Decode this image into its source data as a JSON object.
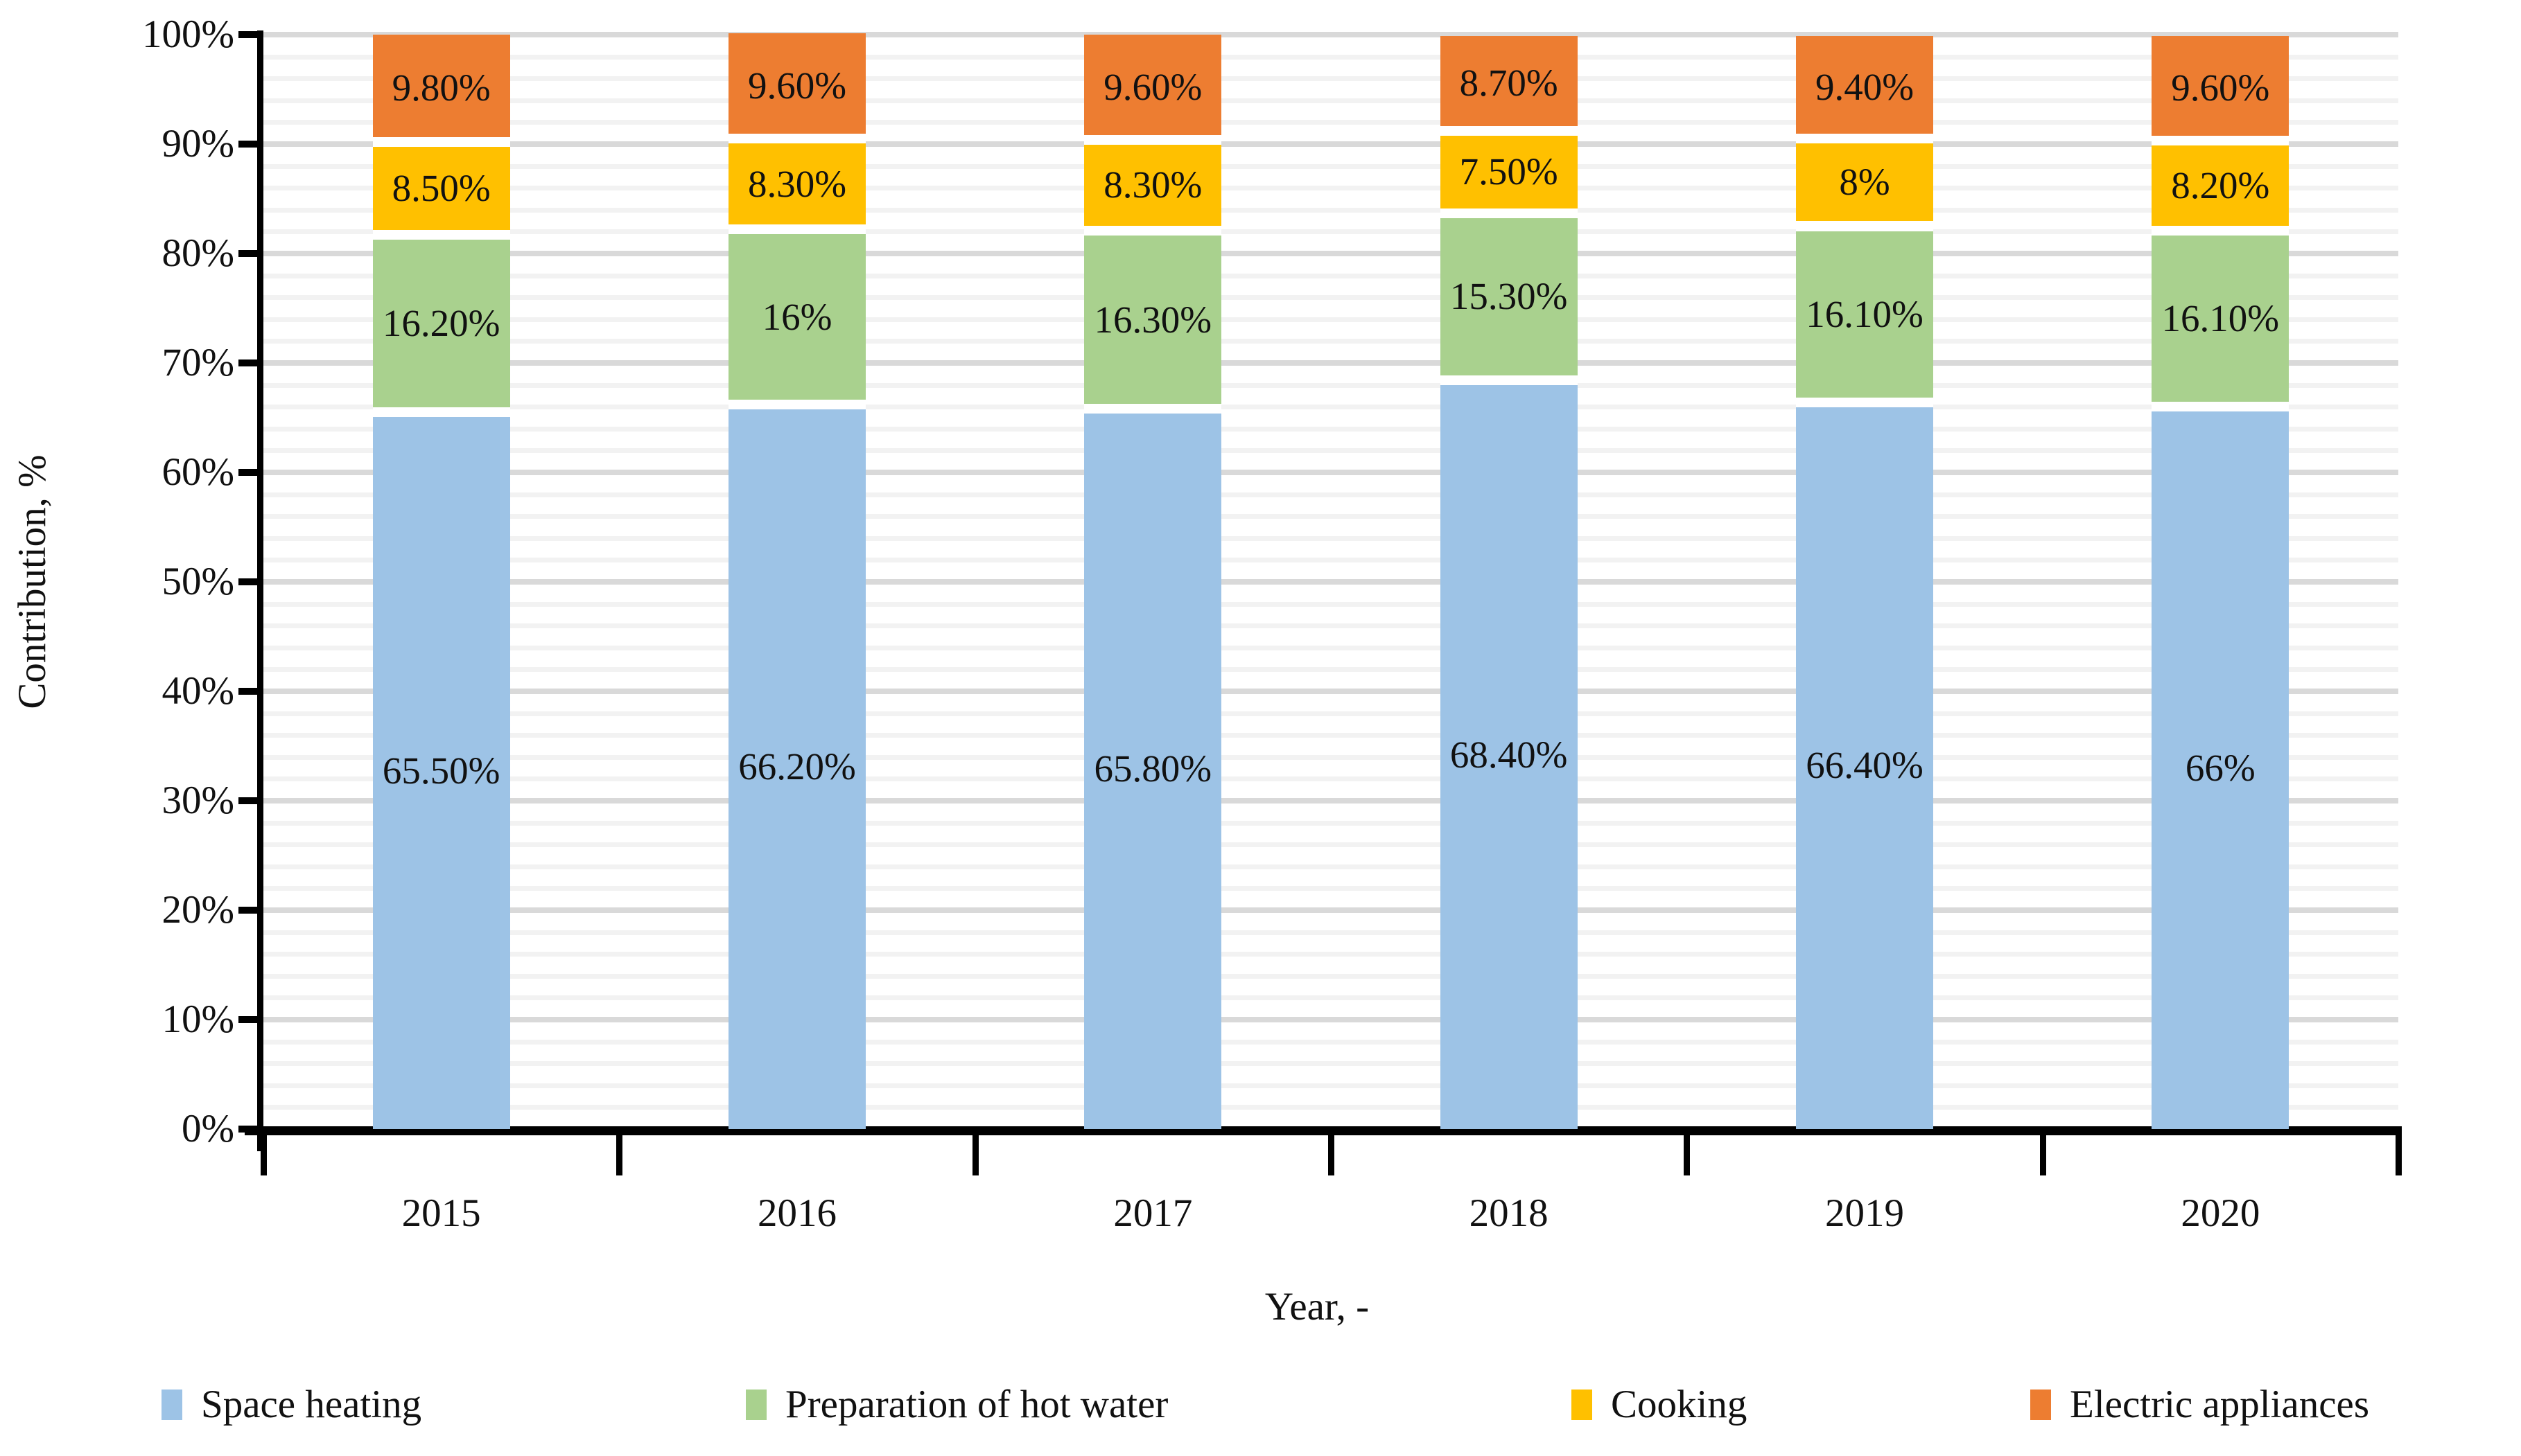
{
  "chart_data": {
    "type": "bar",
    "stacked": true,
    "title": "",
    "xlabel": "Year, -",
    "ylabel": "Contribution, %",
    "categories": [
      "2015",
      "2016",
      "2017",
      "2018",
      "2019",
      "2020"
    ],
    "series": [
      {
        "name": "Space heating",
        "color": "#9DC3E6",
        "values": [
          65.5,
          66.2,
          65.8,
          68.4,
          66.4,
          66.0
        ],
        "labels": [
          "65.50%",
          "66.20%",
          "65.80%",
          "68.40%",
          "66.40%",
          "66%"
        ]
      },
      {
        "name": "Preparation of hot water",
        "color": "#A9D18E",
        "values": [
          16.2,
          16.0,
          16.3,
          15.3,
          16.1,
          16.1
        ],
        "labels": [
          "16.20%",
          "16%",
          "16.30%",
          "15.30%",
          "16.10%",
          "16.10%"
        ]
      },
      {
        "name": "Cooking",
        "color": "#FFC000",
        "values": [
          8.5,
          8.3,
          8.3,
          7.5,
          8.0,
          8.2
        ],
        "labels": [
          "8.50%",
          "8.30%",
          "8.30%",
          "7.50%",
          "8%",
          "8.20%"
        ]
      },
      {
        "name": "Electric appliances",
        "color": "#ED7D31",
        "values": [
          9.8,
          9.6,
          9.6,
          8.7,
          9.4,
          9.6
        ],
        "labels": [
          "9.80%",
          "9.60%",
          "9.60%",
          "8.70%",
          "9.40%",
          "9.60%"
        ]
      }
    ],
    "y_ticks": [
      "0%",
      "10%",
      "20%",
      "30%",
      "40%",
      "50%",
      "60%",
      "70%",
      "80%",
      "90%",
      "100%"
    ],
    "ylim": [
      0,
      100
    ],
    "grid": {
      "major_step": 10,
      "minor_step": 2,
      "major_color": "#D9D9D9",
      "minor_color": "#F2F2F2"
    },
    "legend_position": "bottom",
    "axis_color": "#000000"
  }
}
